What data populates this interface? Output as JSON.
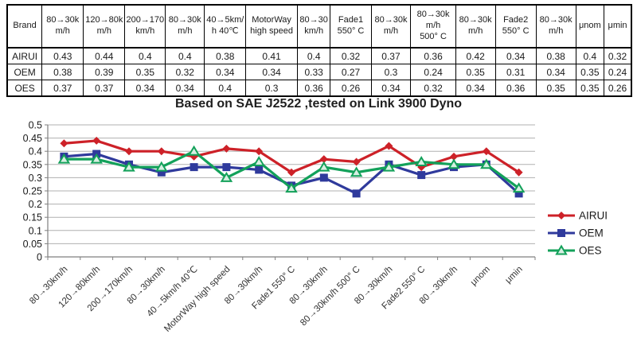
{
  "table": {
    "brand_header": "Brand",
    "columns": [
      "80→30k\nm/h",
      "120→80k\nm/h",
      "200→170\nkm/h",
      "80→30k\nm/h",
      "40→5km/\nh 40℃",
      "MotorWay\nhigh speed",
      "80→30\nkm/h",
      "Fade1\n550° C",
      "80→30k\nm/h",
      "80→30k\nm/h\n500° C",
      "80→30k\nm/h",
      "Fade2\n550° C",
      "80→30k\nm/h",
      "μnom",
      "μmin"
    ],
    "rows": [
      {
        "brand": "AIRUI",
        "values": [
          0.43,
          0.44,
          0.4,
          0.4,
          0.38,
          0.41,
          0.4,
          0.32,
          0.37,
          0.36,
          0.42,
          0.34,
          0.38,
          0.4,
          0.32
        ]
      },
      {
        "brand": "OEM",
        "values": [
          0.38,
          0.39,
          0.35,
          0.32,
          0.34,
          0.34,
          0.33,
          0.27,
          0.3,
          0.24,
          0.35,
          0.31,
          0.34,
          0.35,
          0.24
        ]
      },
      {
        "brand": "OES",
        "values": [
          0.37,
          0.37,
          0.34,
          0.34,
          0.4,
          0.3,
          0.36,
          0.26,
          0.34,
          0.32,
          0.34,
          0.36,
          0.35,
          0.35,
          0.26
        ]
      }
    ]
  },
  "chart_data": {
    "type": "line",
    "title": "Based on SAE J2522 ,tested on Link 3900 Dyno",
    "categories": [
      "80→30km/h",
      "120→80km/h",
      "200→170km/h",
      "80→30km/h",
      "40→5km/h 40℃",
      "MotorWay high speed",
      "80→30km/h",
      "Fade1 550° C",
      "80→30km/h",
      "80→30km/h 500° C",
      "80→30km/h",
      "Fade2 550° C",
      "80→30km/h",
      "μnom",
      "μmin"
    ],
    "series": [
      {
        "name": "AIRUI",
        "color": "#cd2128",
        "marker": "diamond",
        "values": [
          0.43,
          0.44,
          0.4,
          0.4,
          0.38,
          0.41,
          0.4,
          0.32,
          0.37,
          0.36,
          0.42,
          0.34,
          0.38,
          0.4,
          0.32
        ]
      },
      {
        "name": "OEM",
        "color": "#2f3a9c",
        "marker": "square",
        "values": [
          0.38,
          0.39,
          0.35,
          0.32,
          0.34,
          0.34,
          0.33,
          0.27,
          0.3,
          0.24,
          0.35,
          0.31,
          0.34,
          0.35,
          0.24
        ]
      },
      {
        "name": "OES",
        "color": "#13a15a",
        "marker": "triangle",
        "values": [
          0.37,
          0.37,
          0.34,
          0.34,
          0.4,
          0.3,
          0.36,
          0.26,
          0.34,
          0.32,
          0.34,
          0.36,
          0.35,
          0.35,
          0.26
        ]
      }
    ],
    "ylim": [
      0,
      0.5
    ],
    "ytick_step": 0.05,
    "grid": true,
    "legend_position": "right",
    "xlabel": "",
    "ylabel": ""
  },
  "colors": {
    "grid": "#b0b0b0",
    "axis": "#7f7f7f",
    "tick_text": "#1a1a1a",
    "xlabel_text": "#333333",
    "table_border": "#000000"
  }
}
